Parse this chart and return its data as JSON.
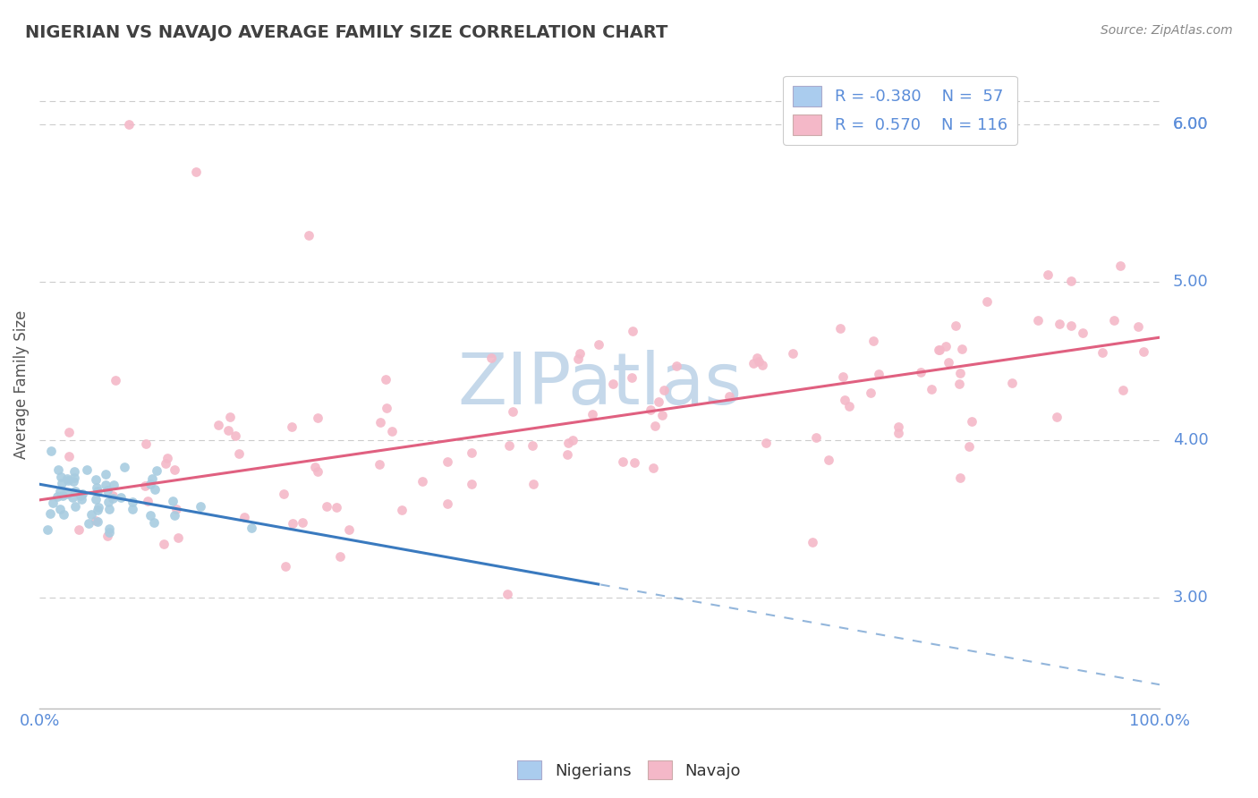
{
  "title": "NIGERIAN VS NAVAJO AVERAGE FAMILY SIZE CORRELATION CHART",
  "source": "Source: ZipAtlas.com",
  "ylabel": "Average Family Size",
  "ytick_values": [
    3.0,
    4.0,
    5.0,
    6.0
  ],
  "xlim": [
    0.0,
    1.0
  ],
  "ylim": [
    2.3,
    6.4
  ],
  "nigerian_color": "#a8cce0",
  "navajo_color": "#f4b8c8",
  "nigerian_trend_color": "#3a7abf",
  "navajo_trend_color": "#e06080",
  "title_color": "#404040",
  "source_color": "#888888",
  "axis_label_color": "#5b8dd9",
  "grid_color": "#cccccc",
  "legend_box_color": "#aaccee",
  "legend_box_color2": "#f4b8c8",
  "watermark_color": "#c5d8ea",
  "nigerian_seed": 42,
  "navajo_seed": 99
}
